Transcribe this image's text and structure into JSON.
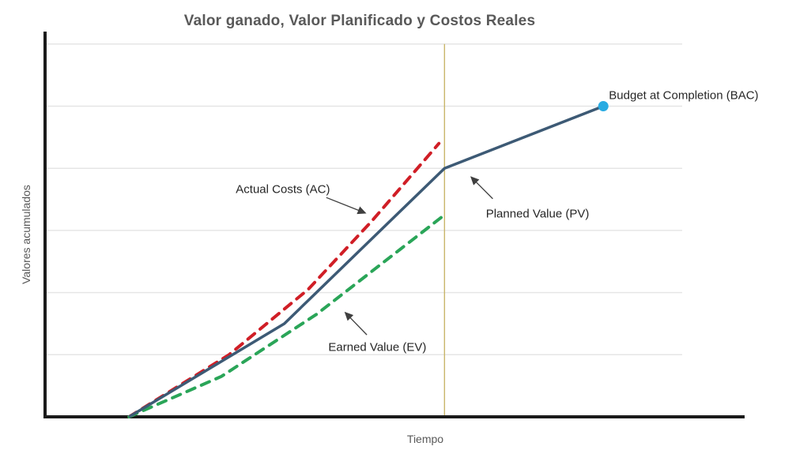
{
  "title": "Valor ganado, Valor Planificado y Costos Reales",
  "xlabel": "Tiempo",
  "ylabel": "Valores acumulados",
  "colors": {
    "planned_value": "#3d5a75",
    "actual_costs": "#d01e26",
    "earned_value": "#2aa558",
    "bac_point": "#29abe2",
    "status_line": "#c8b56a",
    "gridline": "#e6e6e6",
    "axis": "#1a1a1a",
    "title_text": "#595959",
    "axis_label_text": "#595959",
    "annotation_text": "#262626",
    "arrow": "#3f3f3f"
  },
  "chart_data": {
    "type": "line",
    "title": "Valor ganado, Valor Planificado y Costos Reales",
    "xlabel": "Tiempo",
    "ylabel": "Valores acumulados",
    "xlim": [
      0,
      100
    ],
    "ylim": [
      0,
      6.2
    ],
    "grid": "horizontal-only",
    "gridline_values": [
      1,
      2,
      3,
      4,
      5,
      6
    ],
    "axis_tick_labels": "none (axes are unlabeled, units are relative)",
    "legend_position": "none (labels drawn as in-plot annotations)",
    "series": [
      {
        "name": "Planned Value (PV)",
        "style": "solid",
        "color": "#3d5a75",
        "points": [
          [
            12,
            0
          ],
          [
            34.2,
            1.5
          ],
          [
            57.1,
            4.0
          ],
          [
            79.8,
            5.0
          ]
        ]
      },
      {
        "name": "Actual Costs (AC)",
        "style": "dashed",
        "color": "#d01e26",
        "points": [
          [
            12,
            0
          ],
          [
            26.3,
            1.0
          ],
          [
            37.6,
            2.05
          ],
          [
            46.7,
            3.15
          ],
          [
            56.3,
            4.4
          ]
        ]
      },
      {
        "name": "Earned Value (EV)",
        "style": "dashed",
        "color": "#2aa558",
        "points": [
          [
            12,
            0
          ],
          [
            25.2,
            0.65
          ],
          [
            38.8,
            1.65
          ],
          [
            57.1,
            3.25
          ]
        ]
      }
    ],
    "status_line": {
      "x": 57.1,
      "y0": 0,
      "y1": 6,
      "color": "#c8b56a"
    },
    "bac_point": {
      "x": 79.8,
      "y": 5.0,
      "color": "#29abe2"
    },
    "annotations": [
      {
        "id": "ac",
        "text": "Actual Costs (AC)",
        "x": 34.0,
        "y": 3.66,
        "anchor": "center",
        "arrow": {
          "x1": 40.2,
          "y1": 3.53,
          "x2": 45.8,
          "y2": 3.28
        }
      },
      {
        "id": "pv",
        "text": "Planned Value (PV)",
        "x": 70.4,
        "y": 3.27,
        "anchor": "center",
        "arrow": {
          "x1": 64.0,
          "y1": 3.51,
          "x2": 60.9,
          "y2": 3.86
        }
      },
      {
        "id": "ev",
        "text": "Earned Value (EV)",
        "x": 47.5,
        "y": 1.12,
        "anchor": "center",
        "arrow": {
          "x1": 46.0,
          "y1": 1.32,
          "x2": 42.9,
          "y2": 1.68
        }
      },
      {
        "id": "bac",
        "text": "Budget at Completion (BAC)",
        "x": 80.6,
        "y": 5.17,
        "anchor": "left"
      }
    ]
  }
}
